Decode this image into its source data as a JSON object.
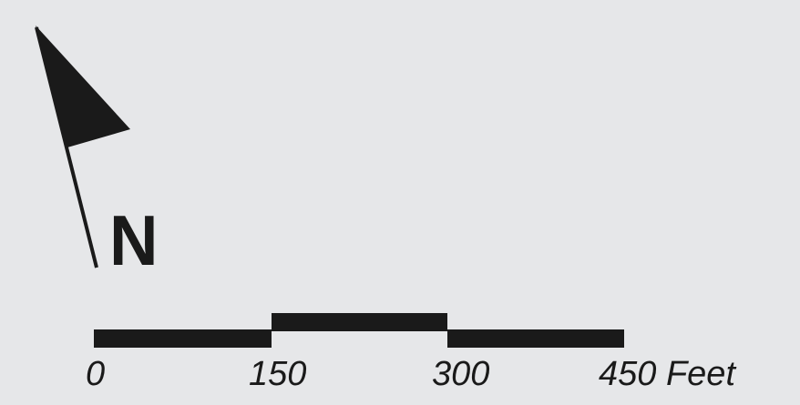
{
  "map": {
    "north_arrow": {
      "icon": "north-arrow-icon",
      "label": "N"
    },
    "scale_bar": {
      "ticks": [
        "0",
        "150",
        "300",
        "450 Feet"
      ],
      "unit": "Feet",
      "segment_values": [
        150,
        150,
        150
      ],
      "color": "#1a1a1a"
    },
    "background_color": "#e6e7e9"
  }
}
